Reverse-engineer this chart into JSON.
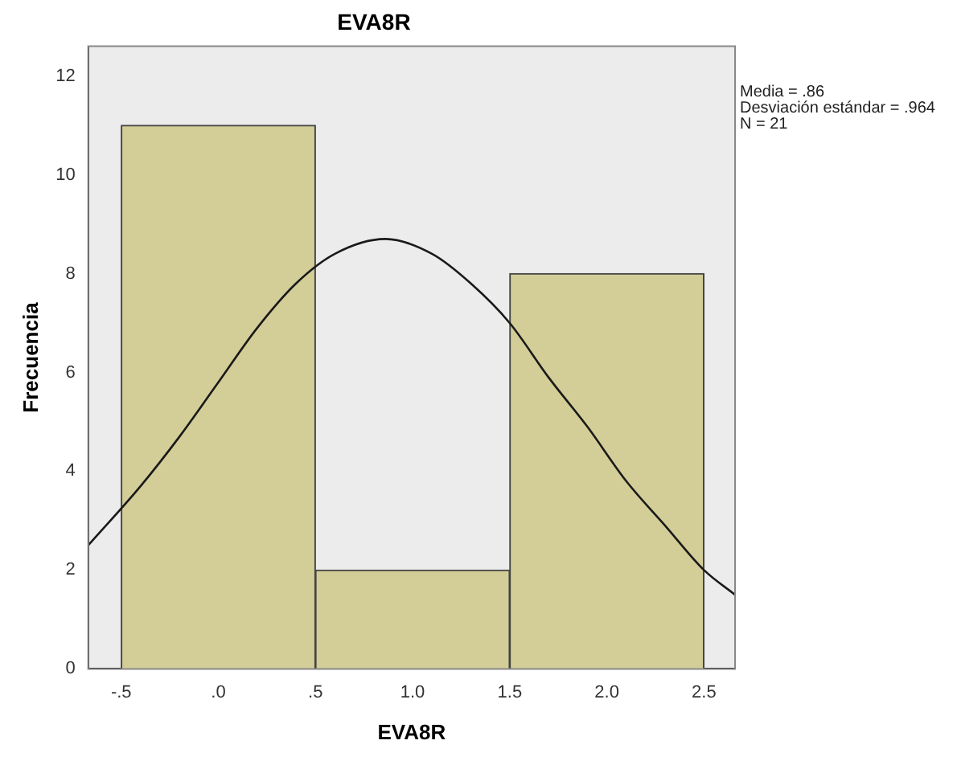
{
  "chart_data": {
    "type": "histogram",
    "title": "EVA8R",
    "xlabel": "EVA8R",
    "ylabel": "Frecuencia",
    "bins": [
      -0.5,
      0.5,
      1.5,
      2.5
    ],
    "values": [
      11,
      2,
      8
    ],
    "color": "#d3ce98",
    "series": [
      {
        "type": "line",
        "color": "#1a1a1a",
        "x": [
          -0.67,
          -0.4,
          -0.2,
          0,
          0.2,
          0.4,
          0.6,
          0.86,
          1.1,
          1.3,
          1.5,
          1.7,
          1.9,
          2.1,
          2.3,
          2.5,
          2.66
        ],
        "values": [
          2.5,
          3.7,
          4.7,
          5.8,
          6.9,
          7.8,
          8.4,
          8.7,
          8.4,
          7.8,
          7.0,
          5.9,
          4.9,
          3.8,
          2.9,
          2.0,
          1.5
        ]
      }
    ],
    "xlim": [
      -0.67,
      2.66
    ],
    "xticks": [
      {
        "value": -0.5,
        "label": "-.5"
      },
      {
        "value": 0,
        "label": ".0"
      },
      {
        "value": 0.5,
        "label": ".5"
      },
      {
        "value": 1,
        "label": "1.0"
      },
      {
        "value": 1.5,
        "label": "1.5"
      },
      {
        "value": 2,
        "label": "2.0"
      },
      {
        "value": 2.5,
        "label": "2.5"
      }
    ],
    "ylim": [
      0,
      12.6
    ],
    "yticks": [
      0,
      2,
      4,
      6,
      8,
      10,
      12
    ],
    "annotations": [
      "Media = .86",
      "Desviación estándar = .964",
      "N = 21"
    ],
    "grid": false,
    "legend": false
  }
}
